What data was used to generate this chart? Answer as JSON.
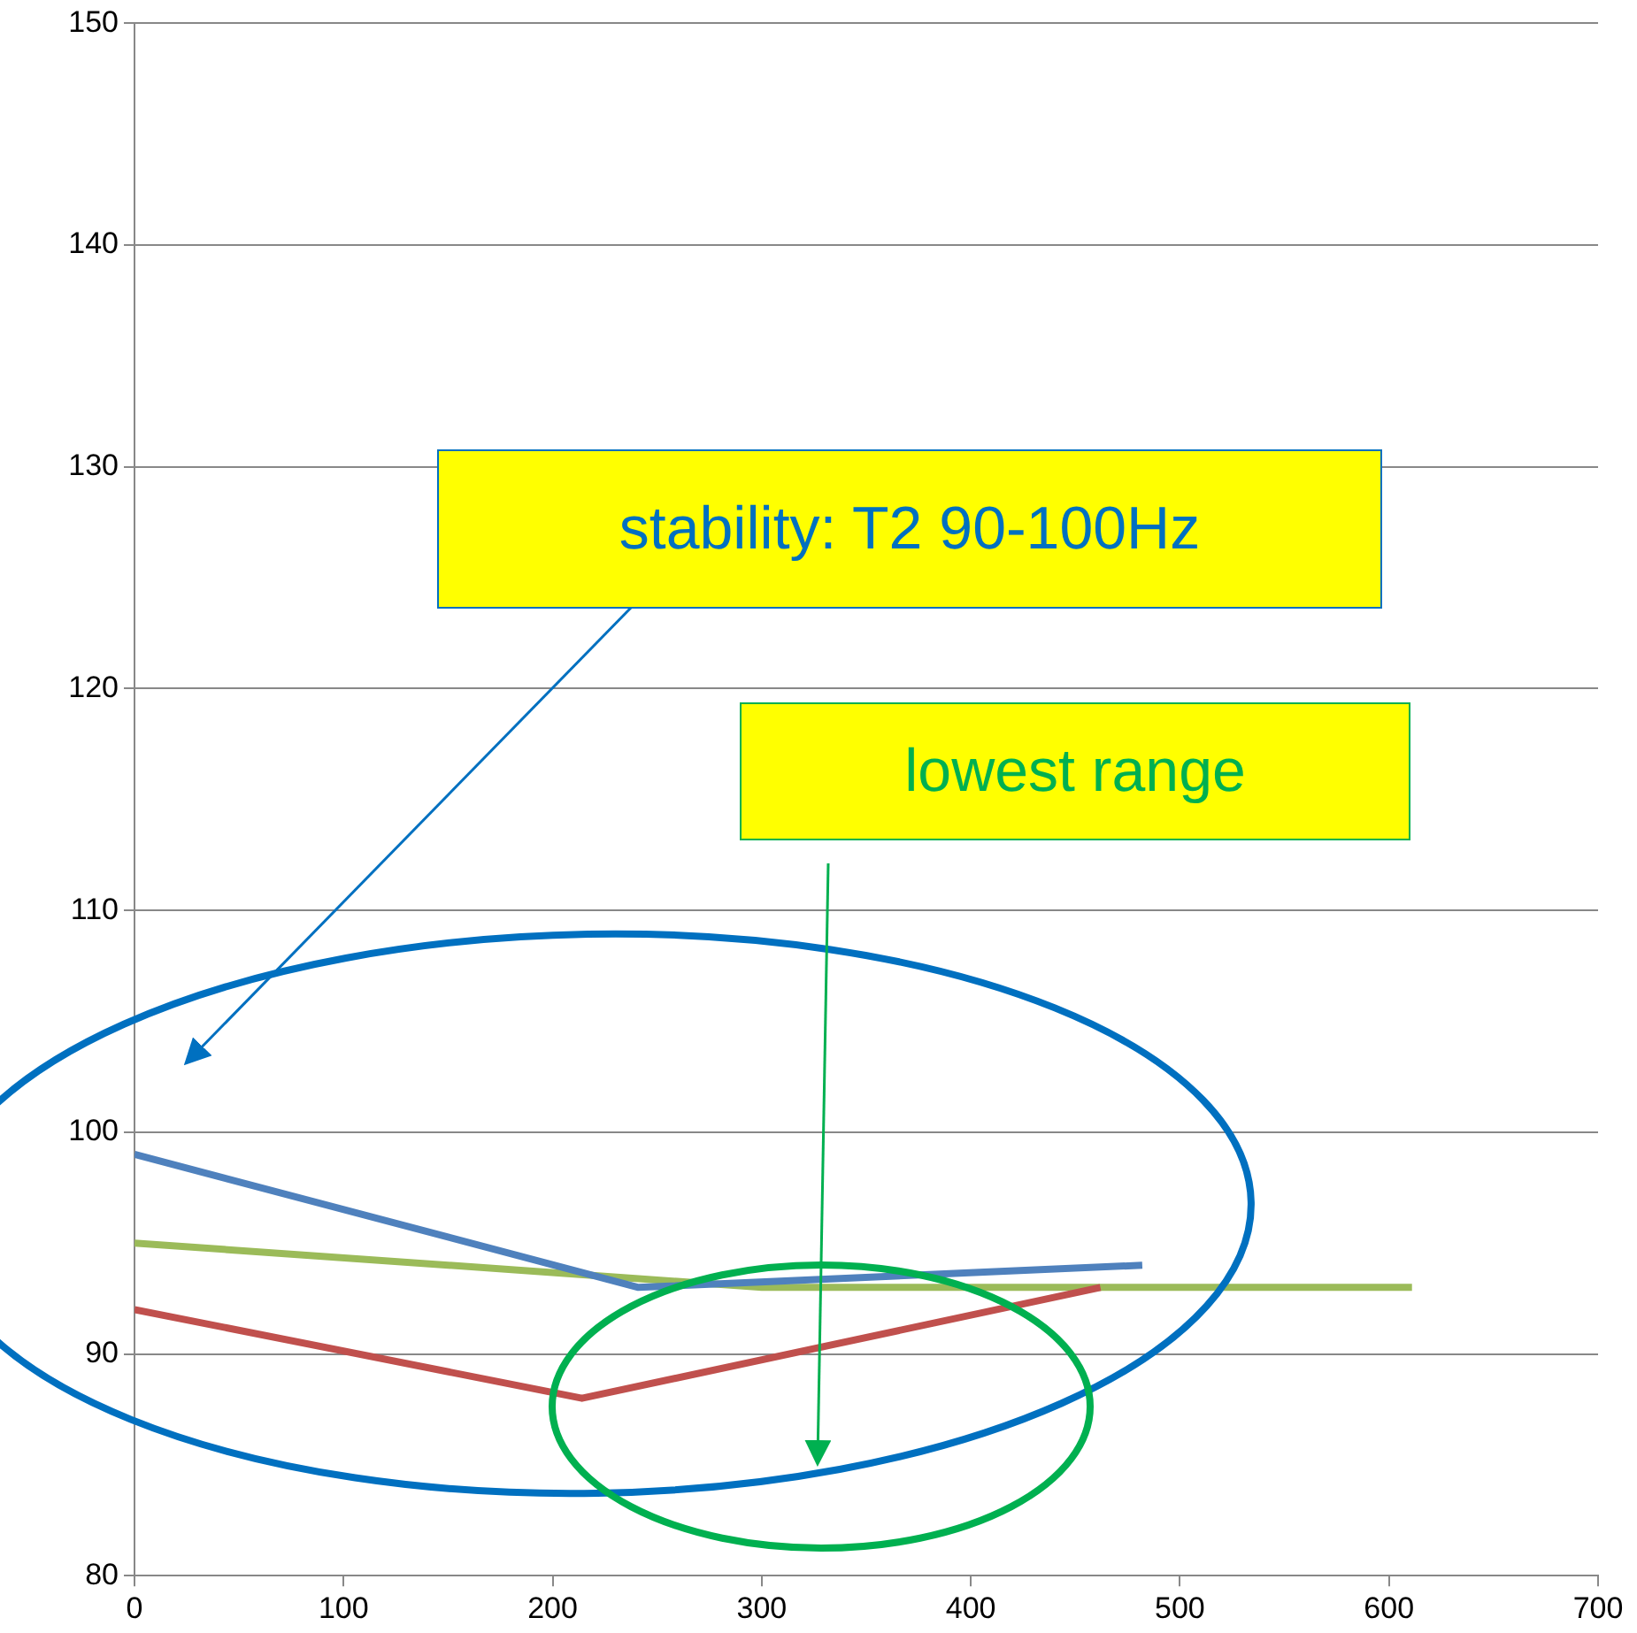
{
  "chart_data": {
    "type": "line",
    "xlim": [
      0,
      700
    ],
    "xticks": [
      0,
      100,
      200,
      300,
      400,
      500,
      600,
      700
    ],
    "ylim": [
      80,
      150
    ],
    "yticks": [
      80,
      90,
      100,
      110,
      120,
      130,
      140,
      150
    ],
    "grid": "y",
    "legend": false,
    "marker": "none",
    "line_style": "solid",
    "series": [
      {
        "color": "#4f81bd",
        "x": [
          0,
          241,
          482
        ],
        "values": [
          99,
          93,
          94
        ]
      },
      {
        "color": "#c0504d",
        "x": [
          0,
          214,
          462
        ],
        "values": [
          92,
          88,
          93
        ]
      },
      {
        "color": "#9bbb59",
        "x": [
          0,
          300,
          611
        ],
        "values": [
          95,
          93,
          93
        ]
      }
    ],
    "annotations": [
      "stability: T2 90-100Hz",
      "lowest range"
    ]
  }
}
